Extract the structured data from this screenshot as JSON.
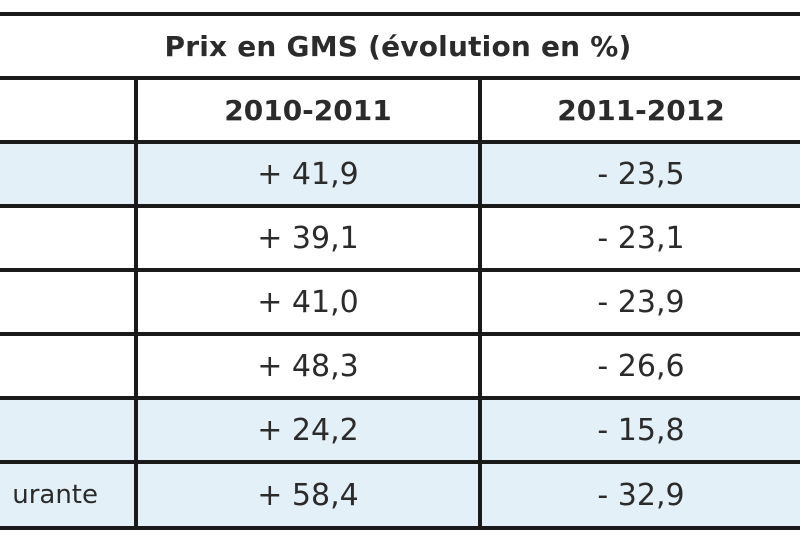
{
  "table": {
    "title": "Prix en GMS (évolution en %)",
    "columns": [
      "",
      "2010-2011",
      "2011-2012"
    ],
    "rows": [
      {
        "label": "",
        "v1": "+ 41,9",
        "v2": "- 23,5",
        "shaded": true
      },
      {
        "label": "",
        "v1": "+ 39,1",
        "v2": "- 23,1",
        "shaded": false
      },
      {
        "label": "",
        "v1": "+ 41,0",
        "v2": "- 23,9",
        "shaded": false
      },
      {
        "label": "",
        "v1": "+ 48,3",
        "v2": "- 26,6",
        "shaded": false
      },
      {
        "label": "",
        "v1": "+ 24,2",
        "v2": "- 15,8",
        "shaded": true
      },
      {
        "label": "urante",
        "v1": "+ 58,4",
        "v2": "- 32,9",
        "shaded": true
      }
    ]
  },
  "colors": {
    "shade": "#e3f0f8",
    "border": "#1a1a1a",
    "text": "#2b2b2b"
  }
}
